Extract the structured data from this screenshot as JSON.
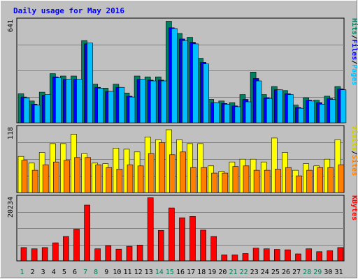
{
  "chart_data": {
    "type": "bar",
    "title": "Daily usage for May 2016",
    "days": [
      "1",
      "2",
      "3",
      "4",
      "5",
      "6",
      "7",
      "8",
      "9",
      "10",
      "11",
      "12",
      "13",
      "14",
      "15",
      "16",
      "17",
      "18",
      "19",
      "20",
      "21",
      "22",
      "23",
      "24",
      "25",
      "26",
      "27",
      "28",
      "29",
      "30",
      "31"
    ],
    "weekend_days": [
      "1",
      "7",
      "8",
      "14",
      "15",
      "21",
      "22",
      "28",
      "29"
    ],
    "panels": [
      {
        "id": "hits",
        "max_label": "641",
        "ylim": [
          0,
          641
        ],
        "series_labels": [
          {
            "text": "Pages",
            "color": "#00c0ff"
          },
          {
            "text": "Files",
            "color": "#0000ff"
          },
          {
            "text": "Hits",
            "color": "#00805c"
          }
        ],
        "series": [
          {
            "name": "Hits",
            "color": "#008060",
            "offset": 0,
            "values": [
              180,
              135,
              190,
              305,
              290,
              290,
              510,
              240,
              215,
              240,
              185,
              290,
              285,
              285,
              630,
              555,
              530,
              400,
              145,
              135,
              125,
              175,
              315,
              175,
              225,
              200,
              110,
              155,
              140,
              165,
              225
            ]
          },
          {
            "name": "Files",
            "color": "#0000ff",
            "offset": 4,
            "values": [
              160,
              115,
              170,
              285,
              270,
              270,
              490,
              220,
              195,
              220,
              165,
              270,
              265,
              265,
              590,
              520,
              500,
              375,
              125,
              120,
              105,
              145,
              275,
              155,
              205,
              180,
              95,
              140,
              125,
              150,
              210
            ]
          },
          {
            "name": "Pages",
            "color": "#00c0ff",
            "offset": 8,
            "values": [
              155,
              110,
              175,
              280,
              270,
              270,
              495,
              215,
              195,
              220,
              160,
              270,
              260,
              260,
              585,
              510,
              490,
              365,
              125,
              115,
              100,
              130,
              260,
              150,
              205,
              175,
              90,
              135,
              115,
              145,
              205
            ]
          }
        ]
      },
      {
        "id": "visits",
        "max_label": "118",
        "ylim": [
          0,
          118
        ],
        "series_labels": [
          {
            "text": "Sites",
            "color": "#ff8000"
          },
          {
            "text": "Visits",
            "color": "#d0d000"
          }
        ],
        "series": [
          {
            "name": "Visits",
            "color": "#ffff00",
            "offset": 0,
            "values": [
              65,
              53,
              72,
              88,
              88,
              105,
              70,
              53,
              52,
              80,
              78,
              73,
              100,
              95,
              113,
              95,
              88,
              88,
              48,
              38,
              55,
              60,
              60,
              55,
              98,
              72,
              40,
              52,
              48,
              60,
              95
            ]
          },
          {
            "name": "Sites",
            "color": "#ff8000",
            "offset": 5,
            "values": [
              58,
              40,
              50,
              55,
              58,
              63,
              63,
              50,
              45,
              42,
              50,
              48,
              70,
              90,
              68,
              73,
              45,
              45,
              35,
              35,
              47,
              48,
              40,
              40,
              42,
              45,
              30,
              40,
              45,
              45,
              50
            ]
          }
        ]
      },
      {
        "id": "kbytes",
        "max_label": "20234",
        "ylim": [
          0,
          20234
        ],
        "series_labels": [
          {
            "text": "KBytes",
            "color": "#ff0000"
          }
        ],
        "series": [
          {
            "name": "KBytes",
            "color": "#ff0000",
            "offset": 4,
            "values": [
              4200,
              3800,
              4200,
              5700,
              7700,
              10000,
              17600,
              3800,
              4800,
              3700,
              4600,
              5000,
              19900,
              9600,
              16700,
              13600,
              14000,
              9700,
              7700,
              1900,
              1900,
              2300,
              4000,
              3800,
              3600,
              3500,
              2200,
              3800,
              2900,
              3200,
              4200
            ]
          }
        ]
      }
    ]
  }
}
